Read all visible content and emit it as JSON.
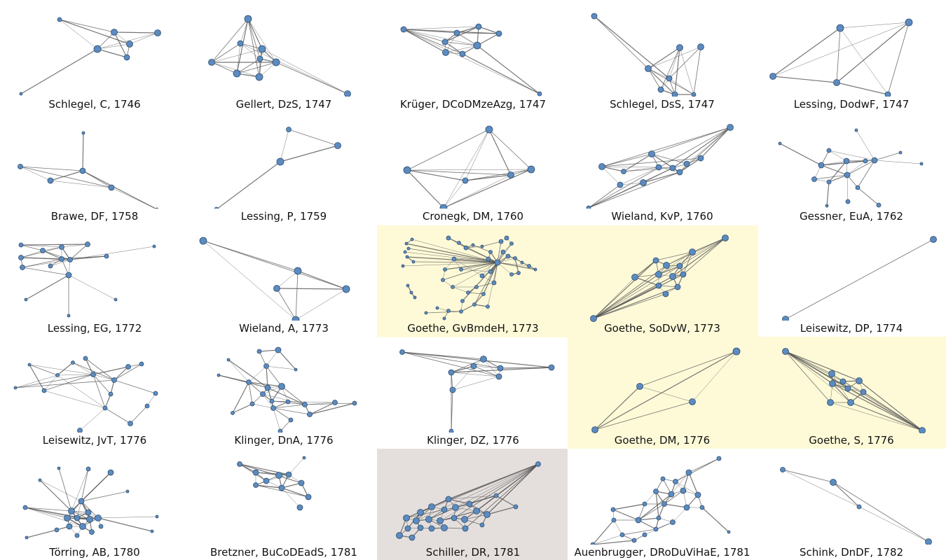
{
  "colors": {
    "node_fill": "#5b8bc0",
    "node_stroke": "#2e4c6e",
    "edge": "#555555",
    "highlight_yellow": "#fefad8",
    "highlight_grey": "#e4dfdd"
  },
  "networks": [
    {
      "caption": "Schlegel, C, 1746",
      "highlight": "none"
    },
    {
      "caption": "Gellert, DzS, 1747",
      "highlight": "none"
    },
    {
      "caption": "Krüger, DCoDMzeAzg, 1747",
      "highlight": "none"
    },
    {
      "caption": "Schlegel, DsS, 1747",
      "highlight": "none"
    },
    {
      "caption": "Lessing, DodwF, 1747",
      "highlight": "none"
    },
    {
      "caption": "Brawe, DF, 1758",
      "highlight": "none"
    },
    {
      "caption": "Lessing, P, 1759",
      "highlight": "none"
    },
    {
      "caption": "Cronegk, DM, 1760",
      "highlight": "none"
    },
    {
      "caption": "Wieland, KvP, 1760",
      "highlight": "none"
    },
    {
      "caption": "Gessner, EuA, 1762",
      "highlight": "none"
    },
    {
      "caption": "Lessing, EG, 1772",
      "highlight": "none"
    },
    {
      "caption": "Wieland, A, 1773",
      "highlight": "none"
    },
    {
      "caption": "Goethe, GvBmdeH, 1773",
      "highlight": "yellow"
    },
    {
      "caption": "Goethe, SoDvW, 1773",
      "highlight": "yellow"
    },
    {
      "caption": "Leisewitz, DP, 1774",
      "highlight": "none"
    },
    {
      "caption": "Leisewitz, JvT, 1776",
      "highlight": "none"
    },
    {
      "caption": "Klinger, DnA, 1776",
      "highlight": "none"
    },
    {
      "caption": "Klinger, DZ, 1776",
      "highlight": "none"
    },
    {
      "caption": "Goethe, DM, 1776",
      "highlight": "yellow"
    },
    {
      "caption": "Goethe, S, 1776",
      "highlight": "yellow"
    },
    {
      "caption": "Törring, AB, 1780",
      "highlight": "none"
    },
    {
      "caption": "Bretzner, BuCoDEadS, 1781",
      "highlight": "none"
    },
    {
      "caption": "Schiller, DR, 1781",
      "highlight": "grey"
    },
    {
      "caption": "Auenbrugger, DRoDuViHaE, 1781",
      "highlight": "none"
    },
    {
      "caption": "Schink, DnDF, 1782",
      "highlight": "none"
    }
  ]
}
